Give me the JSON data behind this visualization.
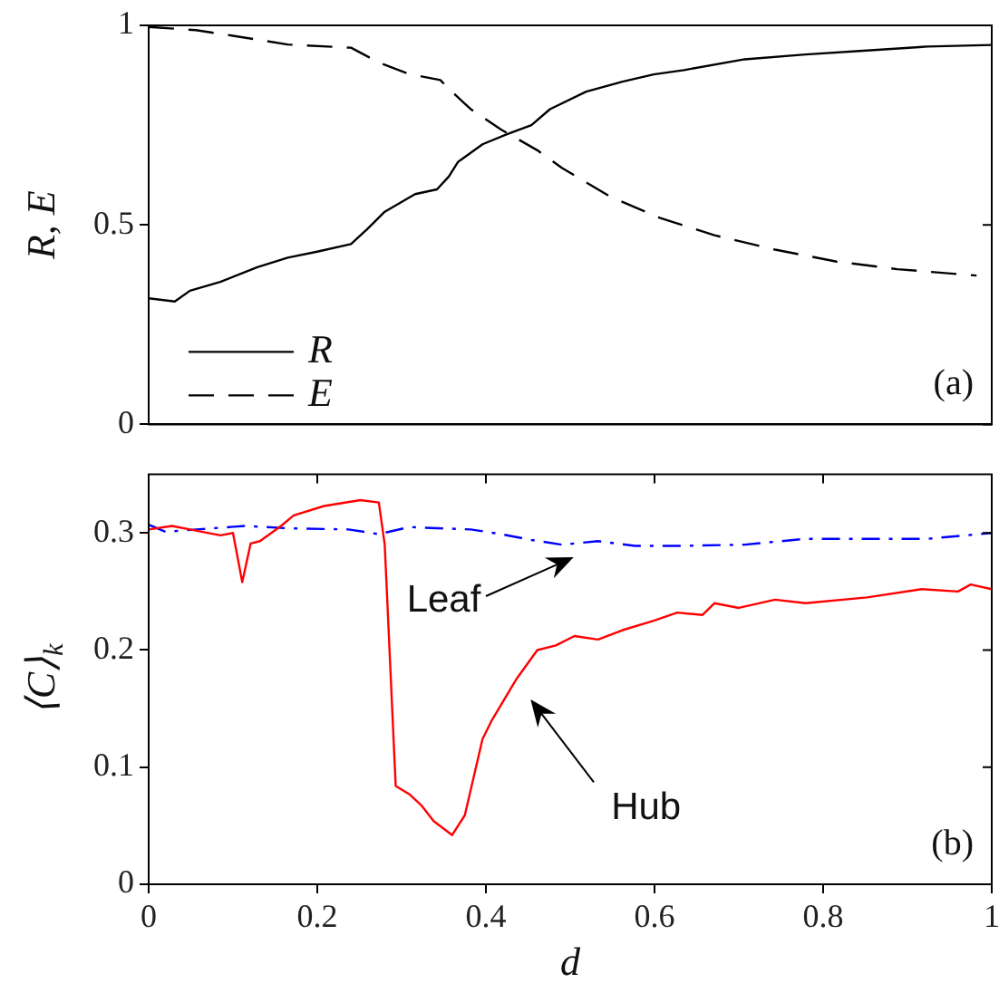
{
  "chart_data": [
    {
      "type": "line",
      "ylabel": "R, E",
      "xlim": [
        0,
        1
      ],
      "ylim": [
        0,
        1
      ],
      "yticks": [
        0,
        0.5,
        1
      ],
      "tick_labels": "y",
      "legend": "bottom left",
      "grid": false,
      "annotations": [
        "(a)"
      ],
      "series": [
        {
          "name": "R",
          "color": "#000000",
          "line_style": "solid",
          "x": [
            0,
            0.031,
            0.049,
            0.085,
            0.129,
            0.165,
            0.2,
            0.24,
            0.259,
            0.28,
            0.316,
            0.342,
            0.356,
            0.367,
            0.396,
            0.425,
            0.454,
            0.476,
            0.519,
            0.562,
            0.599,
            0.635,
            0.707,
            0.779,
            0.852,
            0.924,
            1
          ],
          "values": [
            0.316,
            0.308,
            0.335,
            0.357,
            0.394,
            0.418,
            0.433,
            0.452,
            0.489,
            0.533,
            0.577,
            0.589,
            0.621,
            0.658,
            0.702,
            0.727,
            0.75,
            0.79,
            0.834,
            0.859,
            0.877,
            0.888,
            0.915,
            0.927,
            0.937,
            0.947,
            0.951
          ]
        },
        {
          "name": "E",
          "color": "#000000",
          "line_style": "dashed",
          "x": [
            0,
            0.056,
            0.1,
            0.165,
            0.24,
            0.273,
            0.309,
            0.346,
            0.356,
            0.382,
            0.418,
            0.461,
            0.49,
            0.548,
            0.606,
            0.671,
            0.743,
            0.816,
            0.888,
            0.982
          ],
          "values": [
            0.996,
            0.988,
            0.974,
            0.952,
            0.944,
            0.907,
            0.878,
            0.863,
            0.841,
            0.79,
            0.739,
            0.687,
            0.643,
            0.57,
            0.518,
            0.474,
            0.438,
            0.408,
            0.389,
            0.373
          ]
        }
      ]
    },
    {
      "type": "line",
      "xlabel": "d",
      "ylabel": "⟨C⟩$_{k}$",
      "xlim": [
        0,
        1
      ],
      "xticks": [
        0,
        0.2,
        0.4,
        0.6,
        0.8,
        1
      ],
      "ylim": [
        0,
        0.35
      ],
      "yticks": [
        0,
        0.1,
        0.2,
        0.3
      ],
      "grid": false,
      "annotations": [
        "Leaf",
        "Hub",
        "(b)"
      ],
      "series": [
        {
          "color": "#ff0000",
          "line_style": "solid",
          "x": [
            0,
            0.0275,
            0.056,
            0.085,
            0.1,
            0.111,
            0.121,
            0.132,
            0.157,
            0.172,
            0.208,
            0.251,
            0.273,
            0.28,
            0.293,
            0.309,
            0.324,
            0.338,
            0.36,
            0.375,
            0.396,
            0.407,
            0.436,
            0.461,
            0.483,
            0.505,
            0.533,
            0.562,
            0.599,
            0.627,
            0.657,
            0.671,
            0.7,
            0.743,
            0.779,
            0.852,
            0.917,
            0.96,
            0.975,
            1
          ],
          "values": [
            0.303,
            0.306,
            0.302,
            0.298,
            0.3,
            0.258,
            0.291,
            0.293,
            0.306,
            0.315,
            0.323,
            0.328,
            0.326,
            0.29,
            0.084,
            0.077,
            0.067,
            0.054,
            0.042,
            0.059,
            0.124,
            0.14,
            0.175,
            0.2,
            0.204,
            0.212,
            0.209,
            0.217,
            0.225,
            0.232,
            0.23,
            0.24,
            0.236,
            0.243,
            0.24,
            0.245,
            0.252,
            0.25,
            0.256,
            0.252
          ]
        },
        {
          "color": "#0000ff",
          "line_style": "dashdot",
          "x": [
            0,
            0.02,
            0.114,
            0.165,
            0.237,
            0.273,
            0.309,
            0.382,
            0.418,
            0.454,
            0.49,
            0.533,
            0.577,
            0.635,
            0.707,
            0.779,
            0.852,
            0.924,
            1
          ],
          "values": [
            0.307,
            0.301,
            0.306,
            0.304,
            0.303,
            0.299,
            0.305,
            0.303,
            0.299,
            0.294,
            0.29,
            0.293,
            0.289,
            0.289,
            0.29,
            0.295,
            0.295,
            0.295,
            0.3
          ]
        }
      ]
    }
  ]
}
